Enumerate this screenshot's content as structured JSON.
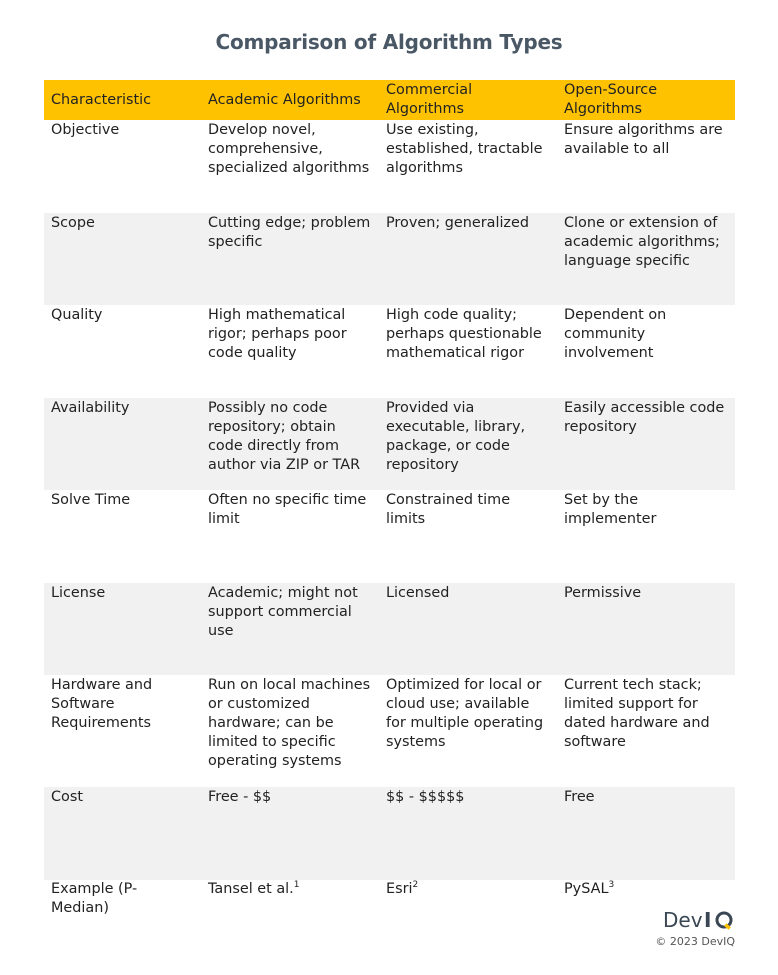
{
  "title": "Comparison of Algorithm Types",
  "columns": [
    "Characteristic",
    "Academic Algorithms",
    "Commercial Algorithms",
    "Open-Source Algorithms"
  ],
  "rows": [
    [
      "Objective",
      "Develop novel, comprehensive, specialized algorithms",
      "Use existing, established, tractable algorithms",
      "Ensure algorithms are available to all"
    ],
    [
      "Scope",
      "Cutting edge; problem specific",
      "Proven; generalized",
      "Clone or extension of academic algorithms; language specific"
    ],
    [
      "Quality",
      "High mathematical rigor; perhaps poor code quality",
      "High code quality; perhaps questionable mathematical rigor",
      "Dependent on community involvement"
    ],
    [
      "Availability",
      "Possibly no code repository; obtain code directly from author via ZIP or TAR",
      "Provided via executable, library, package, or code repository",
      "Easily accessible code repository"
    ],
    [
      "Solve Time",
      "Often no specific time limit",
      "Constrained time limits",
      "Set by the implementer"
    ],
    [
      "License",
      "Academic; might not support commercial use",
      "Licensed",
      "Permissive"
    ],
    [
      "Hardware and Software Requirements",
      "Run on local machines or customized hardware; can be limited to specific operating systems",
      "Optimized for local or cloud use; available for multiple operating systems",
      "Current tech stack; limited support for dated hardware and software"
    ],
    [
      "Cost",
      "Free - $$",
      "$$ - $$$$$",
      "Free"
    ]
  ],
  "example_row": {
    "label": "Example (P-Median)",
    "academic": "Tansel et al.",
    "academic_ref": "1",
    "commercial": "Esri",
    "commercial_ref": "2",
    "open_source": "PySAL",
    "open_source_ref": "3"
  },
  "logo_text": "DevIQ",
  "copyright": "© 2023 DevIQ",
  "colors": {
    "header_bg": "#fec200",
    "alt_row_bg": "#f1f1f1",
    "title": "#4a5866"
  }
}
